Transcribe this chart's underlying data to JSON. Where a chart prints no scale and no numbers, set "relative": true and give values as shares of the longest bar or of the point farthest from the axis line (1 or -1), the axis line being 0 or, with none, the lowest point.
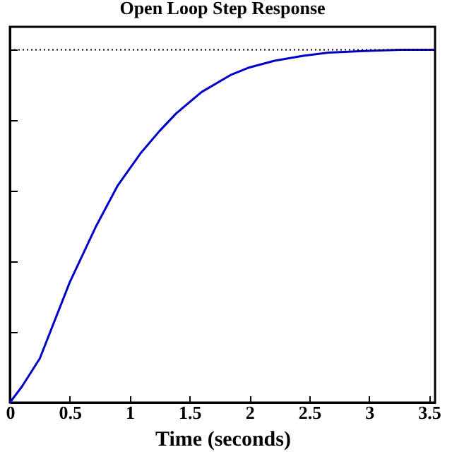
{
  "chart_data": {
    "type": "line",
    "title": "Open Loop Step Response",
    "xlabel": "Time (seconds)",
    "relative": true,
    "xlim": [
      0,
      3.55
    ],
    "xticks": [
      0,
      0.5,
      1,
      1.5,
      2,
      2.5,
      3,
      3.5
    ],
    "grid": false,
    "marker": "none",
    "line_style": "solid",
    "x": [
      0,
      0.1,
      0.25,
      0.5,
      0.72,
      0.9,
      1.09,
      1.25,
      1.39,
      1.6,
      1.84,
      2.0,
      2.21,
      2.45,
      2.66,
      3.0,
      3.26,
      3.55
    ],
    "series": [
      {
        "color": "#0000c8",
        "values": [
          0,
          0.045,
          0.125,
          0.341,
          0.5,
          0.615,
          0.706,
          0.77,
          0.82,
          0.88,
          0.928,
          0.95,
          0.969,
          0.983,
          0.992,
          0.997,
          1.0,
          1.0
        ]
      }
    ],
    "ref_lines": [
      {
        "axis": "y",
        "value": 1,
        "color": "#000000",
        "line_style": "dotted"
      }
    ]
  }
}
